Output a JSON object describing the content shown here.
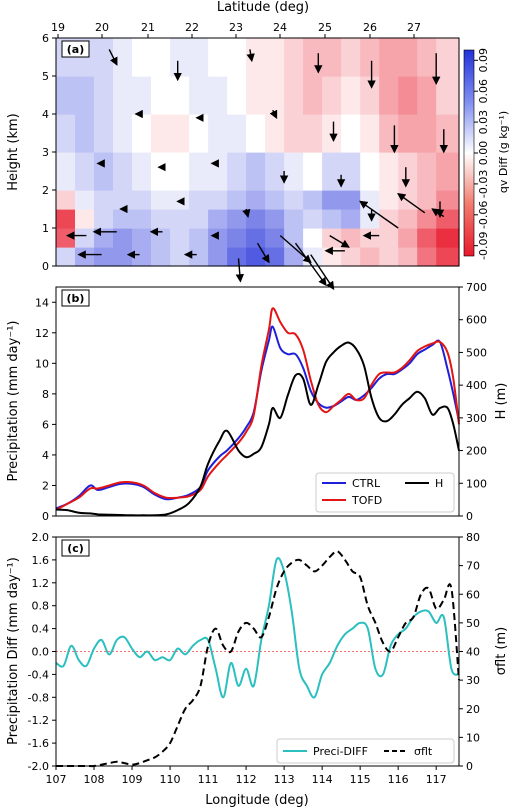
{
  "chart_data": [
    {
      "panel": "(a)",
      "type": "heatmap",
      "top_axis_label": "Latitude (deg)",
      "top_ticks": [
        "19",
        "20",
        "21",
        "22",
        "23",
        "24",
        "25",
        "26",
        "27"
      ],
      "ylabel": "Height (km)",
      "yticks": [
        "0",
        "1",
        "2",
        "3",
        "4",
        "5",
        "6"
      ],
      "ylim": [
        0,
        6
      ],
      "colorbar_label": "qv Diff (g kg⁻¹)",
      "colorbar_ticks": [
        "-0.09",
        "-0.06",
        "-0.03",
        "0.00",
        "0.03",
        "0.06",
        "0.09"
      ],
      "colorbar_range": [
        -0.1,
        0.1
      ],
      "colors": {
        "negative": "#e8182b",
        "positive": "#2432d9"
      },
      "cells_note": "diff sign/magnitude by longitude band x height band",
      "bands_lon": [
        107,
        107.5,
        108,
        108.5,
        109,
        109.5,
        110,
        110.5,
        111,
        111.5,
        112,
        112.5,
        113,
        113.5,
        114,
        114.5,
        115,
        115.5,
        116,
        116.5,
        117,
        117.6
      ],
      "bands_z": [
        0,
        0.5,
        1,
        1.5,
        2,
        3,
        4,
        5,
        6
      ],
      "values": [
        [
          0.02,
          0.04,
          0.05,
          0.05,
          0.04,
          0.03,
          0.02,
          0.03,
          0.05,
          0.07,
          0.08,
          0.07,
          0.04,
          0.01,
          -0.01,
          -0.02,
          -0.03,
          -0.02,
          -0.03,
          -0.06,
          -0.08
        ],
        [
          -0.07,
          0.02,
          0.04,
          0.05,
          0.04,
          0.03,
          0.02,
          0.03,
          0.05,
          0.06,
          0.07,
          0.06,
          0.03,
          0.0,
          -0.02,
          -0.03,
          -0.02,
          -0.02,
          -0.04,
          -0.07,
          -0.09
        ],
        [
          -0.08,
          -0.01,
          0.02,
          0.03,
          0.03,
          0.02,
          0.02,
          0.02,
          0.04,
          0.05,
          0.06,
          0.05,
          0.03,
          0.02,
          0.03,
          0.04,
          0.01,
          -0.02,
          -0.03,
          -0.05,
          -0.07
        ],
        [
          -0.02,
          0.01,
          0.02,
          0.02,
          0.02,
          0.01,
          0.01,
          0.02,
          0.02,
          0.03,
          0.04,
          0.03,
          0.02,
          0.03,
          0.05,
          0.05,
          0.01,
          -0.01,
          -0.02,
          -0.03,
          -0.05
        ],
        [
          0.01,
          0.02,
          0.03,
          0.02,
          0.01,
          0.0,
          0.0,
          0.01,
          0.01,
          0.02,
          0.03,
          0.02,
          0.01,
          0.0,
          0.02,
          0.02,
          0.0,
          -0.01,
          -0.02,
          -0.03,
          -0.04
        ],
        [
          0.02,
          0.03,
          0.02,
          0.01,
          0.0,
          -0.01,
          -0.01,
          0.0,
          0.01,
          0.01,
          0.0,
          -0.01,
          -0.02,
          -0.02,
          -0.01,
          0.0,
          -0.01,
          -0.03,
          -0.04,
          -0.04,
          -0.03
        ],
        [
          0.03,
          0.03,
          0.02,
          0.01,
          0.01,
          0.0,
          0.0,
          0.01,
          0.01,
          0.0,
          -0.01,
          -0.01,
          -0.02,
          -0.03,
          -0.02,
          -0.01,
          -0.02,
          -0.04,
          -0.05,
          -0.04,
          -0.02
        ],
        [
          0.02,
          0.02,
          0.02,
          0.01,
          0.0,
          0.0,
          0.01,
          0.01,
          0.0,
          0.0,
          -0.01,
          -0.01,
          -0.02,
          -0.03,
          -0.03,
          -0.02,
          -0.03,
          -0.04,
          -0.04,
          -0.03,
          -0.02
        ]
      ],
      "arrows": [
        {
          "x": 107.8,
          "z": 0.8,
          "u": -0.5,
          "w": 0.0
        },
        {
          "x": 108.2,
          "z": 0.3,
          "u": -0.6,
          "w": 0.0
        },
        {
          "x": 108.6,
          "z": 0.9,
          "u": -0.6,
          "w": 0.0
        },
        {
          "x": 109.2,
          "z": 0.3,
          "u": -0.3,
          "w": 0.0
        },
        {
          "x": 109.8,
          "z": 0.9,
          "u": -0.3,
          "w": 0.0
        },
        {
          "x": 110.7,
          "z": 0.3,
          "u": -0.3,
          "w": 0.0
        },
        {
          "x": 111.2,
          "z": 0.8,
          "u": -0.1,
          "w": 0.0
        },
        {
          "x": 111.8,
          "z": 0.2,
          "u": 0.05,
          "w": -0.6
        },
        {
          "x": 112.3,
          "z": 0.6,
          "u": 0.3,
          "w": -0.5
        },
        {
          "x": 112.9,
          "z": 0.8,
          "u": 0.8,
          "w": -0.7
        },
        {
          "x": 113.3,
          "z": 0.6,
          "u": 0.8,
          "w": -1.1
        },
        {
          "x": 113.7,
          "z": 0.3,
          "u": 0.6,
          "w": -0.9
        },
        {
          "x": 114.2,
          "z": 0.8,
          "u": 0.5,
          "w": -0.3
        },
        {
          "x": 114.6,
          "z": 0.4,
          "u": -0.5,
          "w": 0.0
        },
        {
          "x": 115.5,
          "z": 0.8,
          "u": -0.4,
          "w": 0.0
        },
        {
          "x": 116.0,
          "z": 1.0,
          "u": -1.0,
          "w": 0.7
        },
        {
          "x": 116.7,
          "z": 1.4,
          "u": -0.7,
          "w": 0.5
        },
        {
          "x": 117.2,
          "z": 1.3,
          "u": -0.3,
          "w": 0.2
        },
        {
          "x": 108.4,
          "z": 5.7,
          "u": 0.2,
          "w": -0.4
        },
        {
          "x": 110.2,
          "z": 5.4,
          "u": 0.0,
          "w": -0.5
        },
        {
          "x": 112.1,
          "z": 5.7,
          "u": 0.05,
          "w": -0.3
        },
        {
          "x": 113.9,
          "z": 5.6,
          "u": 0.0,
          "w": -0.5
        },
        {
          "x": 115.3,
          "z": 5.4,
          "u": 0.0,
          "w": -0.7
        },
        {
          "x": 117.0,
          "z": 5.6,
          "u": 0.0,
          "w": -0.8
        },
        {
          "x": 109.2,
          "z": 4.0,
          "u": -0.1,
          "w": 0.0
        },
        {
          "x": 110.8,
          "z": 3.9,
          "u": -0.1,
          "w": 0.0
        },
        {
          "x": 112.7,
          "z": 4.1,
          "u": 0.1,
          "w": -0.2
        },
        {
          "x": 114.3,
          "z": 3.8,
          "u": 0.0,
          "w": -0.5
        },
        {
          "x": 115.9,
          "z": 3.7,
          "u": 0.0,
          "w": -0.7
        },
        {
          "x": 117.2,
          "z": 3.6,
          "u": 0.0,
          "w": -0.6
        },
        {
          "x": 108.2,
          "z": 2.7,
          "u": -0.1,
          "w": 0.0
        },
        {
          "x": 109.8,
          "z": 2.6,
          "u": -0.1,
          "w": 0.0
        },
        {
          "x": 111.2,
          "z": 2.7,
          "u": -0.1,
          "w": 0.0
        },
        {
          "x": 113.0,
          "z": 2.5,
          "u": 0.0,
          "w": -0.3
        },
        {
          "x": 114.5,
          "z": 2.4,
          "u": 0.0,
          "w": -0.3
        },
        {
          "x": 116.2,
          "z": 2.6,
          "u": 0.0,
          "w": -0.5
        },
        {
          "x": 108.8,
          "z": 1.5,
          "u": -0.1,
          "w": 0.0
        },
        {
          "x": 110.3,
          "z": 1.7,
          "u": -0.1,
          "w": 0.0
        },
        {
          "x": 112.0,
          "z": 1.5,
          "u": 0.05,
          "w": -0.2
        },
        {
          "x": 115.3,
          "z": 1.5,
          "u": 0.0,
          "w": -0.3
        },
        {
          "x": 117.1,
          "z": 1.7,
          "u": 0.0,
          "w": -0.4
        }
      ]
    },
    {
      "panel": "(b)",
      "type": "line",
      "ylabel": "Precipitation (mm day⁻¹)",
      "ylim": [
        0,
        15
      ],
      "yticks": [
        "0",
        "2",
        "4",
        "6",
        "8",
        "10",
        "12",
        "14"
      ],
      "y2label": "H (m)",
      "y2lim": [
        0,
        700
      ],
      "y2ticks": [
        "0",
        "100",
        "200",
        "300",
        "400",
        "500",
        "600",
        "700"
      ],
      "xlim": [
        107,
        117.6
      ],
      "x": [
        107.0,
        107.3,
        107.6,
        107.9,
        108.1,
        108.4,
        108.7,
        109.0,
        109.3,
        109.6,
        109.9,
        110.2,
        110.5,
        110.8,
        111.0,
        111.3,
        111.5,
        111.8,
        112.0,
        112.2,
        112.4,
        112.6,
        112.7,
        112.9,
        113.1,
        113.3,
        113.5,
        113.7,
        113.9,
        114.1,
        114.3,
        114.5,
        114.7,
        114.9,
        115.1,
        115.3,
        115.5,
        115.7,
        115.9,
        116.1,
        116.3,
        116.5,
        116.7,
        116.9,
        117.1,
        117.3,
        117.45,
        117.6
      ],
      "series": [
        {
          "name": "CTRL",
          "color": "#1f1fd9",
          "axis": "left",
          "values": [
            0.5,
            0.8,
            1.3,
            2.0,
            1.7,
            1.9,
            2.1,
            2.1,
            1.9,
            1.4,
            1.1,
            1.2,
            1.4,
            1.9,
            3.0,
            3.9,
            4.3,
            5.1,
            5.8,
            6.8,
            9.5,
            11.5,
            12.4,
            11.0,
            10.6,
            10.6,
            9.7,
            8.2,
            7.4,
            7.1,
            7.2,
            7.5,
            7.8,
            7.6,
            7.9,
            8.4,
            9.0,
            9.3,
            9.3,
            9.6,
            10.0,
            10.6,
            10.9,
            11.2,
            11.4,
            9.6,
            8.0,
            6.2
          ]
        },
        {
          "name": "TOFD",
          "color": "#e31414",
          "axis": "left",
          "values": [
            0.4,
            0.8,
            1.2,
            1.8,
            1.8,
            2.0,
            2.2,
            2.2,
            2.0,
            1.5,
            1.2,
            1.2,
            1.3,
            1.7,
            2.6,
            3.5,
            4.0,
            4.8,
            5.5,
            6.6,
            9.8,
            12.2,
            13.6,
            12.7,
            12.0,
            11.9,
            10.9,
            8.9,
            7.3,
            6.8,
            7.2,
            7.6,
            8.0,
            7.6,
            7.7,
            8.6,
            9.3,
            9.4,
            9.4,
            9.7,
            10.2,
            10.8,
            11.1,
            11.3,
            11.4,
            10.7,
            9.0,
            6.0
          ]
        },
        {
          "name": "H",
          "color": "#000000",
          "axis": "right",
          "values": [
            20,
            18,
            10,
            8,
            5,
            4,
            3,
            2,
            2,
            2,
            5,
            18,
            40,
            90,
            160,
            230,
            260,
            200,
            180,
            190,
            210,
            280,
            330,
            300,
            370,
            430,
            420,
            340,
            400,
            470,
            500,
            520,
            530,
            510,
            460,
            360,
            300,
            290,
            310,
            340,
            360,
            380,
            360,
            310,
            330,
            330,
            280,
            200
          ]
        }
      ],
      "legend": [
        "CTRL",
        "TOFD",
        "H"
      ]
    },
    {
      "panel": "(c)",
      "type": "line",
      "ylabel": "Precipitation Diff (mm day⁻¹)",
      "ylim": [
        -2.0,
        2.0
      ],
      "yticks": [
        "-2.0",
        "-1.6",
        "-1.2",
        "-0.8",
        "-0.4",
        "0.0",
        "0.4",
        "0.8",
        "1.2",
        "1.6",
        "2.0"
      ],
      "y2label": "σflt (m)",
      "y2lim": [
        0,
        80
      ],
      "y2ticks": [
        "0",
        "10",
        "20",
        "30",
        "40",
        "50",
        "60",
        "70",
        "80"
      ],
      "xlabel": "Longitude (deg)",
      "xlim": [
        107,
        117.6
      ],
      "xticks": [
        "107",
        "108",
        "109",
        "110",
        "111",
        "112",
        "113",
        "114",
        "115",
        "116",
        "117"
      ],
      "zero_line_color": "#ff4040",
      "x": [
        107.0,
        107.2,
        107.4,
        107.6,
        107.8,
        108.0,
        108.2,
        108.4,
        108.6,
        108.8,
        109.0,
        109.2,
        109.4,
        109.6,
        109.8,
        110.0,
        110.2,
        110.4,
        110.6,
        110.8,
        111.0,
        111.2,
        111.4,
        111.6,
        111.8,
        112.0,
        112.2,
        112.4,
        112.6,
        112.8,
        113.0,
        113.2,
        113.4,
        113.6,
        113.8,
        114.0,
        114.2,
        114.4,
        114.6,
        114.8,
        115.0,
        115.2,
        115.4,
        115.6,
        115.8,
        116.0,
        116.2,
        116.4,
        116.6,
        116.8,
        117.0,
        117.2,
        117.4,
        117.6
      ],
      "series": [
        {
          "name": "Preci-DIFF",
          "color": "#2bbfbf",
          "axis": "left",
          "values": [
            -0.2,
            -0.25,
            0.1,
            -0.15,
            -0.25,
            0.05,
            0.2,
            -0.05,
            0.2,
            0.25,
            0.05,
            -0.1,
            0.0,
            -0.15,
            -0.1,
            -0.15,
            0.05,
            -0.05,
            0.1,
            0.2,
            0.2,
            -0.3,
            -0.8,
            -0.2,
            -0.6,
            -0.3,
            -0.6,
            0.2,
            0.8,
            1.6,
            1.4,
            0.7,
            -0.3,
            -0.6,
            -0.8,
            -0.4,
            -0.2,
            0.1,
            0.3,
            0.4,
            0.5,
            0.4,
            -0.3,
            -0.4,
            0.1,
            0.3,
            0.4,
            0.6,
            0.7,
            0.7,
            0.5,
            0.6,
            -0.3,
            -0.4
          ]
        },
        {
          "name": "σflt",
          "color": "#000000",
          "axis": "right",
          "dashed": true,
          "values": [
            0,
            0,
            0,
            0,
            0,
            0,
            0.5,
            1,
            1.5,
            1,
            0.5,
            1,
            2,
            3,
            5,
            8,
            14,
            20,
            23,
            28,
            42,
            48,
            42,
            40,
            47,
            50,
            48,
            45,
            52,
            62,
            68,
            71,
            72,
            70,
            68,
            70,
            73,
            75,
            72,
            68,
            66,
            56,
            50,
            43,
            40,
            45,
            50,
            52,
            60,
            62,
            55,
            58,
            62,
            30
          ]
        }
      ],
      "legend": [
        "Preci-DIFF",
        "σflt"
      ]
    }
  ]
}
